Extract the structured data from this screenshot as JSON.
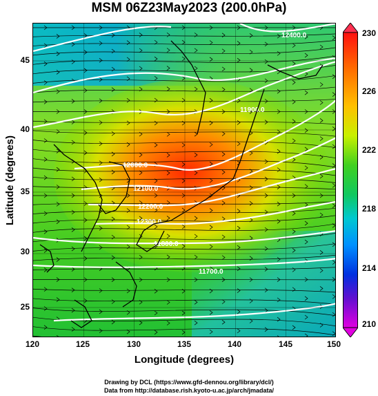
{
  "title": "MSM 06Z23May2023 (200.0hPa)",
  "map": {
    "xlabel": "Longitude (degrees)",
    "ylabel": "Latitude  (degrees)",
    "x_ticks": [
      "120",
      "125",
      "130",
      "135",
      "140",
      "145",
      "150"
    ],
    "y_ticks": [
      "25",
      "30",
      "35",
      "40",
      "45"
    ],
    "extent": {
      "lon": [
        120,
        150
      ],
      "lat": [
        22.4,
        47.6
      ]
    },
    "contour_labels": [
      "12300.0",
      "12200.0",
      "12100.0",
      "12000.0",
      "11900.0",
      "11800.0",
      "11700.0",
      "12400.0"
    ],
    "colorbar": {
      "labels": [
        "230",
        "226",
        "222",
        "218",
        "214",
        "210"
      ],
      "range": [
        210,
        230
      ],
      "colors": [
        "#ff0000",
        "#ff8800",
        "#ffe000",
        "#aaf000",
        "#22cc22",
        "#00c8c0",
        "#00aaff",
        "#0044ff",
        "#8800ff",
        "#ff00ff"
      ]
    }
  },
  "footer": {
    "line1": "Drawing by DCL (https://www.gfd-dennou.org/library/dcl/)",
    "line2": "Data from http://database.rish.kyoto-u.ac.jp/arch/jmadata/"
  }
}
